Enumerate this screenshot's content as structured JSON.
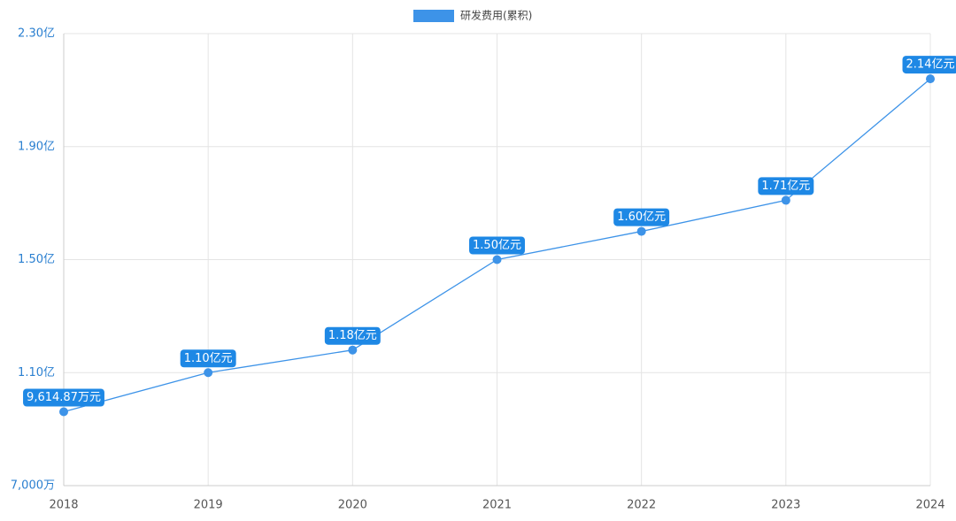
{
  "chart_data": {
    "type": "line",
    "categories": [
      "2018",
      "2019",
      "2020",
      "2021",
      "2022",
      "2023",
      "2024"
    ],
    "series": [
      {
        "name": "研发费用(累积)",
        "color": "#3d93e8",
        "values": [
          0.961487,
          1.1,
          1.18,
          1.5,
          1.6,
          1.71,
          2.14
        ],
        "value_labels": [
          "9,614.87万元",
          "1.10亿元",
          "1.18亿元",
          "1.50亿元",
          "1.60亿元",
          "1.71亿元",
          "2.14亿元"
        ]
      }
    ],
    "ylim": [
      0.7,
      2.3
    ],
    "yticks": [
      {
        "value": 0.7,
        "label": "7,000万"
      },
      {
        "value": 1.1,
        "label": "1.10亿"
      },
      {
        "value": 1.5,
        "label": "1.50亿"
      },
      {
        "value": 1.9,
        "label": "1.90亿"
      },
      {
        "value": 2.3,
        "label": "2.30亿"
      }
    ],
    "grid": true,
    "legend": "top",
    "label_color": "#1e88e5"
  }
}
